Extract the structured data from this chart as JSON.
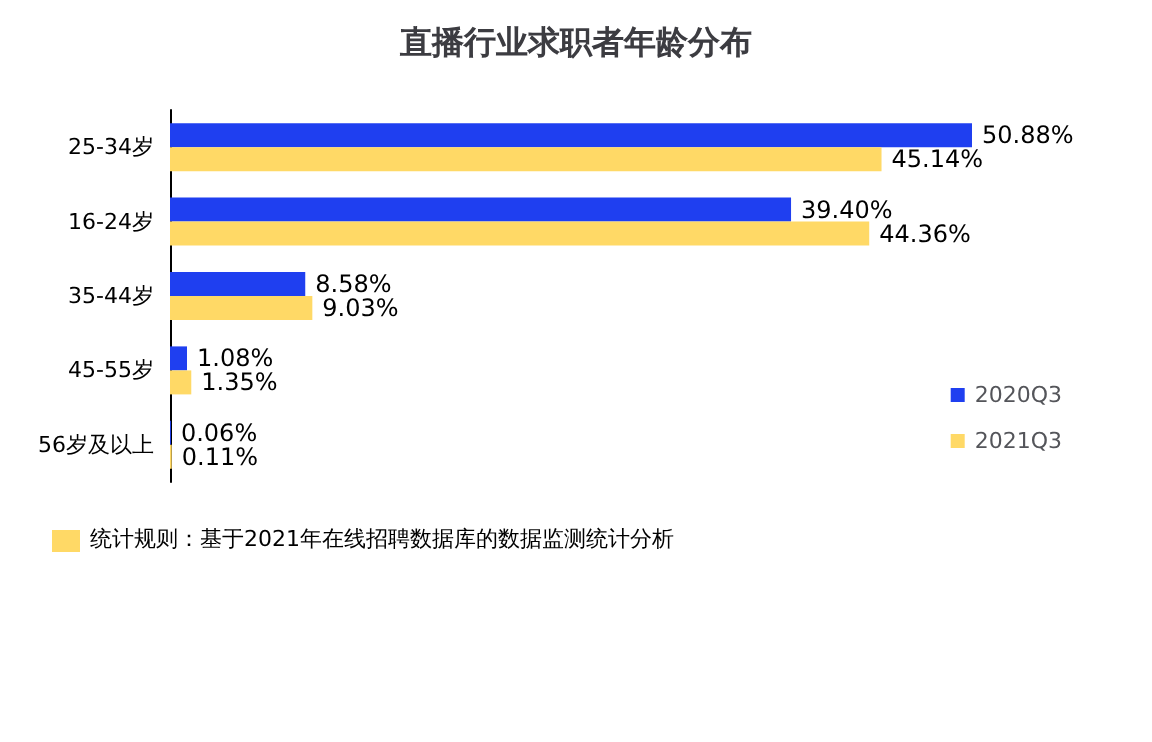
{
  "chart_data": {
    "type": "bar",
    "orientation": "horizontal",
    "title": "直播行业求职者年龄分布",
    "categories": [
      "25-34岁",
      "16-24岁",
      "35-44岁",
      "45-55岁",
      "56岁及以上"
    ],
    "series": [
      {
        "name": "2020Q3",
        "color": "#1f3ff0",
        "values": [
          50.88,
          39.4,
          8.58,
          1.08,
          0.06
        ],
        "value_labels": [
          "50.88%",
          "39.40%",
          "8.58%",
          "1.08%",
          "0.06%"
        ]
      },
      {
        "name": "2021Q3",
        "color": "#ffd966",
        "values": [
          45.14,
          44.36,
          9.03,
          1.35,
          0.11
        ],
        "value_labels": [
          "45.14%",
          "44.36%",
          "9.03%",
          "1.35%",
          "0.11%"
        ]
      }
    ],
    "legend": "bottom right",
    "annotations": [
      "统计规则：基于2021年在线招聘数据库的数据监测统计分析"
    ]
  }
}
